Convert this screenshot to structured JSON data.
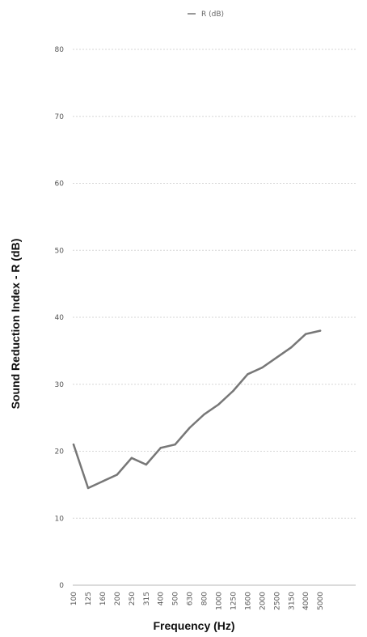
{
  "chart_data": {
    "type": "line",
    "title": "",
    "xlabel": "Frequency (Hz)",
    "ylabel": "Sound Reduction Index - R (dB)",
    "categories": [
      "100",
      "125",
      "160",
      "200",
      "250",
      "315",
      "400",
      "500",
      "630",
      "800",
      "1000",
      "1250",
      "1600",
      "2000",
      "2500",
      "3150",
      "4000",
      "5000"
    ],
    "series": [
      {
        "name": "R (dB)",
        "color": "#777777",
        "values": [
          21,
          14.5,
          15.5,
          16.5,
          19,
          18,
          20.5,
          21,
          23.5,
          25.5,
          27,
          29,
          31.5,
          32.5,
          34,
          35.5,
          37.5,
          38
        ]
      }
    ],
    "ylim": [
      0,
      80
    ],
    "yticks": [
      0,
      10,
      20,
      30,
      40,
      50,
      60,
      70,
      80
    ],
    "grid": true,
    "legend": "top-center"
  }
}
